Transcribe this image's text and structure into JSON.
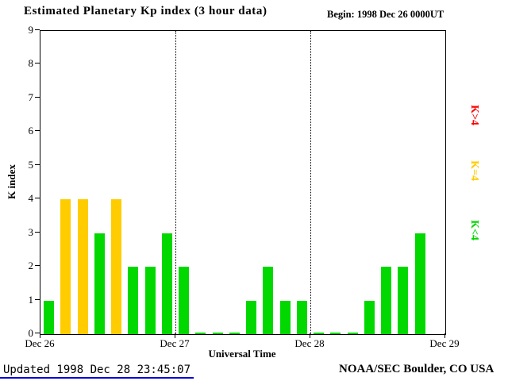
{
  "footer": {
    "updated": "Updated 1998 Dec 28 23:45:07",
    "credit": "NOAA/SEC Boulder, CO USA"
  },
  "chart_data": {
    "type": "bar",
    "title": "Estimated Planetary Kp index (3 hour data)",
    "annotation_begin": "Begin:  1998 Dec 26 0000UT",
    "xlabel": "Universal Time",
    "ylabel": "K index",
    "ylim": [
      0,
      9
    ],
    "y_ticks": [
      0,
      1,
      2,
      3,
      4,
      5,
      6,
      7,
      8,
      9
    ],
    "x_tick_labels": [
      "Dec 26",
      "Dec 27",
      "Dec 28",
      "Dec 29"
    ],
    "bars_per_day": 8,
    "num_days": 3,
    "values": [
      1,
      4,
      4,
      3,
      4,
      2,
      2,
      3,
      2,
      0,
      0,
      0,
      1,
      2,
      1,
      1,
      0,
      0,
      0,
      1,
      2,
      2,
      3
    ],
    "color_rule": {
      "k_lt_4": "#00d800",
      "k_eq_4": "#ffcc00",
      "k_gt_4": "#ff0000"
    },
    "legend": [
      {
        "label": "K>4",
        "color": "#ff0000"
      },
      {
        "label": "K=4",
        "color": "#ffcc00"
      },
      {
        "label": "K<4",
        "color": "#00d800"
      }
    ],
    "grid": "dotted vertical lines at day boundaries"
  }
}
